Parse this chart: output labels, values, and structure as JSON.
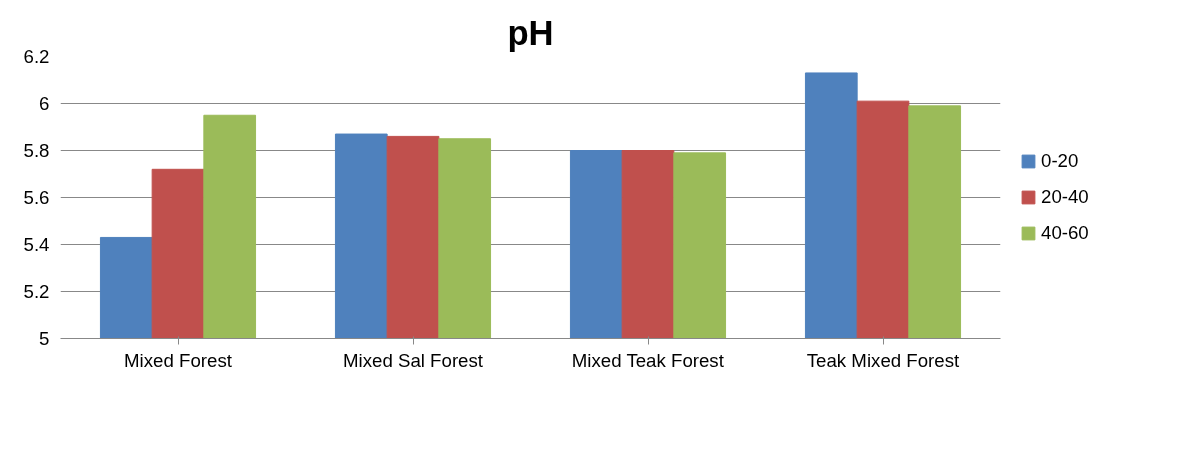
{
  "chart_data": {
    "type": "bar",
    "title": "pH",
    "categories": [
      "Mixed Forest",
      "Mixed Sal Forest",
      "Mixed Teak Forest",
      "Teak Mixed Forest"
    ],
    "series": [
      {
        "name": "0-20",
        "color": "#4f81bd",
        "values": [
          5.43,
          5.87,
          5.8,
          6.13
        ]
      },
      {
        "name": "20-40",
        "color": "#c0504d",
        "values": [
          5.72,
          5.86,
          5.8,
          6.01
        ]
      },
      {
        "name": "40-60",
        "color": "#9bbb59",
        "values": [
          5.95,
          5.85,
          5.79,
          5.99
        ]
      }
    ],
    "ylim": [
      5,
      6.2
    ],
    "yticks": [
      5,
      5.2,
      5.4,
      5.6,
      5.8,
      6,
      6.2
    ],
    "grid": "y",
    "legend": "right"
  }
}
